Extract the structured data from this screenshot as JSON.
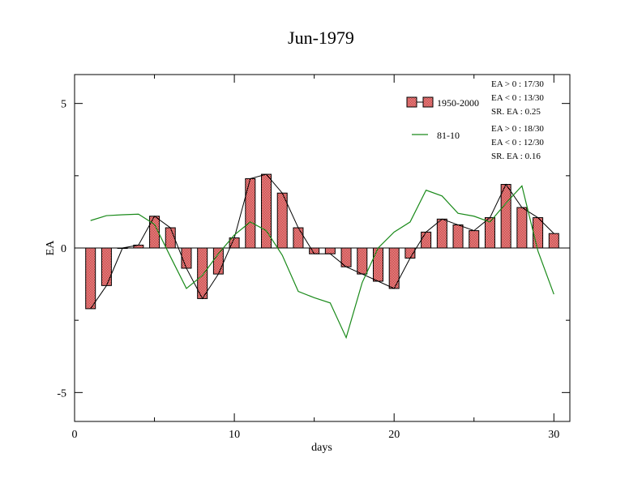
{
  "chart_data": {
    "type": "bar",
    "title": "Jun-1979",
    "xlabel": "days",
    "ylabel": "EA",
    "xlim": [
      0,
      31
    ],
    "ylim": [
      -6,
      6
    ],
    "x_ticks": [
      0,
      10,
      20,
      30
    ],
    "y_ticks": [
      5,
      0,
      -5
    ],
    "grid": false,
    "legend_position": "top-right",
    "x": [
      1,
      2,
      3,
      4,
      5,
      6,
      7,
      8,
      9,
      10,
      11,
      12,
      13,
      14,
      15,
      16,
      17,
      18,
      19,
      20,
      21,
      22,
      23,
      24,
      25,
      26,
      27,
      28,
      29,
      30
    ],
    "series": [
      {
        "name": "1950-2000",
        "kind": "bar+line",
        "color": "#e06060",
        "values": [
          -2.1,
          -1.3,
          0.0,
          0.1,
          1.1,
          0.7,
          -0.7,
          -1.75,
          -0.9,
          0.35,
          2.4,
          2.55,
          1.9,
          0.7,
          -0.2,
          -0.2,
          -0.65,
          -0.9,
          -1.15,
          -1.4,
          -0.35,
          0.55,
          1.0,
          0.8,
          0.6,
          1.05,
          2.2,
          1.4,
          1.05,
          0.5
        ]
      },
      {
        "name": "81-10",
        "kind": "line",
        "color": "#1a8a1a",
        "values": [
          0.95,
          1.12,
          1.15,
          1.17,
          0.82,
          -0.3,
          -1.4,
          -0.95,
          -0.2,
          0.45,
          0.9,
          0.6,
          -0.25,
          -1.5,
          -1.72,
          -1.9,
          -3.1,
          -1.2,
          0.0,
          0.55,
          0.9,
          2.0,
          1.8,
          1.2,
          1.1,
          0.9,
          1.55,
          2.15,
          -0.1,
          -1.6
        ]
      }
    ],
    "stats": [
      {
        "lines": [
          "EA > 0 : 17/30",
          "EA < 0 : 13/30",
          "SR. EA :  0.25"
        ]
      },
      {
        "lines": [
          "EA > 0 : 18/30",
          "EA < 0 : 12/30",
          "SR. EA :  0.16"
        ]
      }
    ]
  }
}
